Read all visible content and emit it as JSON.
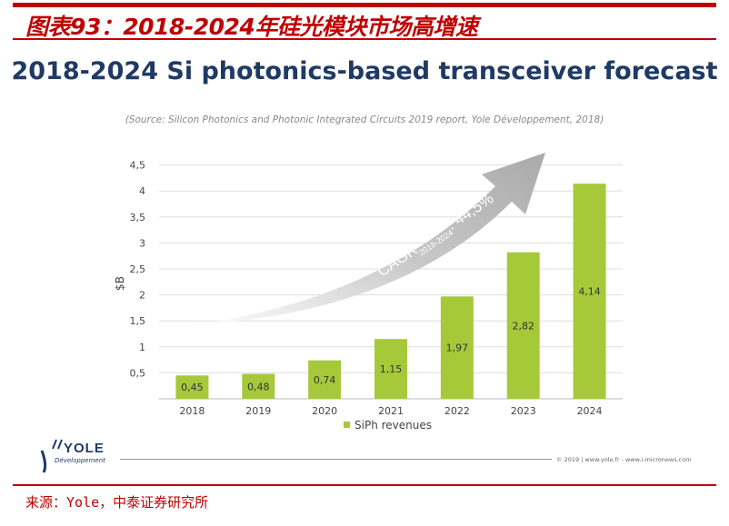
{
  "figure_title": "图表93：2018-2024年硅光模块市场高增速",
  "source": "来源：Yole，中泰证券研究所",
  "footer_note": "© 2019 | www.yole.fr - www.i-micronews.com",
  "logo_text": "YOLE",
  "logo_sub": "Développement",
  "chart_data": {
    "type": "bar",
    "title": "2018-2024 Si photonics-based transceiver forecast",
    "subtitle": "(Source: Silicon Photonics and Photonic Integrated Circuits 2019 report, Yole Développement, 2018)",
    "ylabel": "$B",
    "ylim": [
      0,
      4.5
    ],
    "yticks": [
      "0,5",
      "1",
      "1,5",
      "2",
      "2,5",
      "3",
      "3,5",
      "4",
      "4,5"
    ],
    "categories": [
      "2018",
      "2019",
      "2020",
      "2021",
      "2022",
      "2023",
      "2024"
    ],
    "series": [
      {
        "name": "SiPh revenues",
        "values": [
          0.45,
          0.48,
          0.74,
          1.15,
          1.97,
          2.82,
          4.14
        ]
      }
    ],
    "data_labels": [
      "0,45",
      "0,48",
      "0,74",
      "1,15",
      "1,97",
      "2,82",
      "4,14"
    ],
    "annotation": {
      "text": "CAGR",
      "sub": "2018-2024",
      "value": ": 44,5%"
    },
    "legend": "bottom",
    "grid": true,
    "colors": {
      "bar": "#a6c93a",
      "arrow": "#b8b8b8",
      "title": "#1f3a64"
    }
  }
}
